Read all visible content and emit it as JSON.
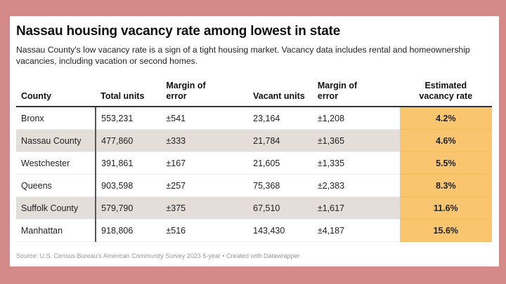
{
  "title": "Nassau housing vacancy rate among lowest in state",
  "subtitle": "Nassau County's low vacancy rate is a sign of a tight housing market. Vacancy data includes rental and homeownership vacancies, including vacation or second homes.",
  "colors": {
    "background": "#d48a88",
    "shaded_row": "#e4ddd8",
    "rate_highlight": "#f9c56e"
  },
  "chart_data": {
    "type": "table",
    "columns": [
      "County",
      "Total units",
      "Margin of error",
      "Vacant units",
      "Margin of error",
      "Estimated vacancy rate"
    ],
    "rows": [
      [
        "Bronx",
        "553,231",
        "±541",
        "23,164",
        "±1,208",
        "4.2%"
      ],
      [
        "Nassau County",
        "477,860",
        "±333",
        "21,784",
        "±1,365",
        "4.6%"
      ],
      [
        "Westchester",
        "391,861",
        "±167",
        "21,605",
        "±1,335",
        "5.5%"
      ],
      [
        "Queens",
        "903,598",
        "±257",
        "75,368",
        "±2,383",
        "8.3%"
      ],
      [
        "Suffolk County",
        "579,790",
        "±375",
        "67,510",
        "±1,617",
        "11.6%"
      ],
      [
        "Manhattan",
        "918,806",
        "±516",
        "143,430",
        "±4,187",
        "15.6%"
      ]
    ]
  },
  "source": "Source: U.S. Census Bureau's American Community Survey 2023 5-year • Created with Datawrapper"
}
